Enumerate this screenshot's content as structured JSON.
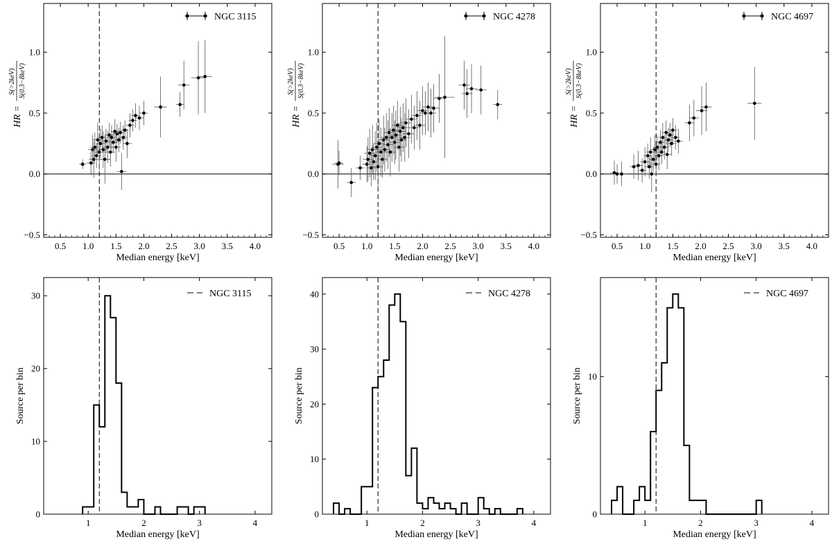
{
  "chart_data": [
    {
      "type": "scatter",
      "title": "",
      "legend": "NGC 3115",
      "legend_position": "top-right",
      "xlabel": "Median energy [keV]",
      "ylabel_main": "HR =",
      "ylabel_num": "S(>2keV)",
      "ylabel_den": "S(0.3−8keV)",
      "xlim": [
        0.2,
        4.3
      ],
      "ylim": [
        -0.52,
        1.4
      ],
      "xticks": [
        "0.5",
        "1.0",
        "1.5",
        "2.0",
        "2.5",
        "3.0",
        "3.5",
        "4.0"
      ],
      "yticks": [
        "−0.5",
        "0.0",
        "0.5",
        "1.0"
      ],
      "ytick_values": [
        -0.5,
        0.0,
        0.5,
        1.0
      ],
      "vline": 1.2,
      "hline": 0.0,
      "points": [
        [
          0.9,
          0.08,
          0.04
        ],
        [
          1.05,
          0.09,
          0.1
        ],
        [
          1.08,
          0.2,
          0.12
        ],
        [
          1.1,
          0.12,
          0.15
        ],
        [
          1.12,
          0.22,
          0.12
        ],
        [
          1.15,
          0.15,
          0.1
        ],
        [
          1.17,
          0.28,
          0.14
        ],
        [
          1.2,
          0.18,
          0.15
        ],
        [
          1.22,
          0.25,
          0.12
        ],
        [
          1.25,
          0.3,
          0.1
        ],
        [
          1.27,
          0.2,
          0.15
        ],
        [
          1.3,
          0.12,
          0.2
        ],
        [
          1.32,
          0.27,
          0.1
        ],
        [
          1.35,
          0.22,
          0.13
        ],
        [
          1.38,
          0.32,
          0.1
        ],
        [
          1.4,
          0.18,
          0.12
        ],
        [
          1.42,
          0.3,
          0.1
        ],
        [
          1.45,
          0.26,
          0.09
        ],
        [
          1.48,
          0.35,
          0.1
        ],
        [
          1.5,
          0.22,
          0.12
        ],
        [
          1.52,
          0.33,
          0.08
        ],
        [
          1.55,
          0.28,
          0.1
        ],
        [
          1.58,
          0.34,
          0.09
        ],
        [
          1.6,
          0.02,
          0.15
        ],
        [
          1.63,
          0.3,
          0.1
        ],
        [
          1.66,
          0.36,
          0.08
        ],
        [
          1.7,
          0.25,
          0.12
        ],
        [
          1.75,
          0.4,
          0.1
        ],
        [
          1.8,
          0.44,
          0.09
        ],
        [
          1.85,
          0.48,
          0.1
        ],
        [
          1.92,
          0.46,
          0.1
        ],
        [
          2.0,
          0.5,
          0.1
        ],
        [
          2.3,
          0.55,
          0.25
        ],
        [
          2.65,
          0.57,
          0.1
        ],
        [
          2.72,
          0.73,
          0.2
        ],
        [
          2.98,
          0.79,
          0.3
        ],
        [
          3.1,
          0.8,
          0.3
        ]
      ]
    },
    {
      "type": "scatter",
      "title": "",
      "legend": "NGC 4278",
      "legend_position": "top-right",
      "xlabel": "Median energy [keV]",
      "ylabel_main": "HR =",
      "ylabel_num": "S(>2keV)",
      "ylabel_den": "S(0.3−8keV)",
      "xlim": [
        0.2,
        4.3
      ],
      "ylim": [
        -0.52,
        1.4
      ],
      "xticks": [
        "0.5",
        "1.0",
        "1.5",
        "2.0",
        "2.5",
        "3.0",
        "3.5",
        "4.0"
      ],
      "yticks": [
        "−0.5",
        "0.0",
        "0.5",
        "1.0"
      ],
      "ytick_values": [
        -0.5,
        0.0,
        0.5,
        1.0
      ],
      "vline": 1.2,
      "hline": 0.0,
      "points": [
        [
          0.48,
          0.08,
          0.2
        ],
        [
          0.5,
          0.09,
          0.1
        ],
        [
          0.72,
          -0.07,
          0.12
        ],
        [
          0.88,
          0.05,
          0.1
        ],
        [
          1.0,
          0.08,
          0.15
        ],
        [
          1.02,
          0.12,
          0.18
        ],
        [
          1.05,
          0.17,
          0.2
        ],
        [
          1.08,
          0.05,
          0.15
        ],
        [
          1.1,
          0.2,
          0.2
        ],
        [
          1.12,
          0.1,
          0.15
        ],
        [
          1.15,
          0.15,
          0.2
        ],
        [
          1.18,
          0.22,
          0.2
        ],
        [
          1.2,
          0.06,
          0.18
        ],
        [
          1.22,
          0.25,
          0.2
        ],
        [
          1.25,
          0.18,
          0.2
        ],
        [
          1.28,
          0.12,
          0.15
        ],
        [
          1.3,
          0.28,
          0.2
        ],
        [
          1.32,
          0.2,
          0.18
        ],
        [
          1.35,
          0.3,
          0.2
        ],
        [
          1.38,
          0.24,
          0.2
        ],
        [
          1.4,
          0.34,
          0.2
        ],
        [
          1.42,
          0.18,
          0.2
        ],
        [
          1.45,
          0.3,
          0.2
        ],
        [
          1.48,
          0.36,
          0.2
        ],
        [
          1.5,
          0.26,
          0.18
        ],
        [
          1.52,
          0.32,
          0.2
        ],
        [
          1.55,
          0.4,
          0.2
        ],
        [
          1.58,
          0.22,
          0.2
        ],
        [
          1.6,
          0.35,
          0.2
        ],
        [
          1.62,
          0.28,
          0.18
        ],
        [
          1.65,
          0.38,
          0.2
        ],
        [
          1.68,
          0.3,
          0.2
        ],
        [
          1.7,
          0.42,
          0.2
        ],
        [
          1.75,
          0.33,
          0.2
        ],
        [
          1.8,
          0.45,
          0.2
        ],
        [
          1.85,
          0.38,
          0.18
        ],
        [
          1.9,
          0.48,
          0.2
        ],
        [
          1.95,
          0.4,
          0.2
        ],
        [
          2.0,
          0.52,
          0.2
        ],
        [
          2.05,
          0.5,
          0.18
        ],
        [
          2.1,
          0.55,
          0.2
        ],
        [
          2.15,
          0.5,
          0.2
        ],
        [
          2.2,
          0.54,
          0.2
        ],
        [
          2.3,
          0.62,
          0.2
        ],
        [
          2.4,
          0.63,
          0.5
        ],
        [
          2.75,
          0.73,
          0.2
        ],
        [
          2.8,
          0.66,
          0.2
        ],
        [
          2.88,
          0.7,
          0.2
        ],
        [
          3.05,
          0.69,
          0.2
        ],
        [
          3.35,
          0.57,
          0.12
        ]
      ]
    },
    {
      "type": "scatter",
      "title": "",
      "legend": "NGC 4697",
      "legend_position": "top-right",
      "xlabel": "Median energy [keV]",
      "ylabel_main": "HR =",
      "ylabel_num": "S(>2keV)",
      "ylabel_den": "S(0.3−8keV)",
      "xlim": [
        0.2,
        4.3
      ],
      "ylim": [
        -0.52,
        1.4
      ],
      "xticks": [
        "0.5",
        "1.0",
        "1.5",
        "2.0",
        "2.5",
        "3.0",
        "3.5",
        "4.0"
      ],
      "yticks": [
        "−0.5",
        "0.0",
        "0.5",
        "1.0"
      ],
      "ytick_values": [
        -0.5,
        0.0,
        0.5,
        1.0
      ],
      "vline": 1.2,
      "hline": 0.0,
      "points": [
        [
          0.45,
          0.01,
          0.1
        ],
        [
          0.5,
          0.0,
          0.08
        ],
        [
          0.58,
          0.0,
          0.1
        ],
        [
          0.8,
          0.06,
          0.1
        ],
        [
          0.88,
          0.07,
          0.12
        ],
        [
          0.95,
          0.03,
          0.1
        ],
        [
          1.0,
          0.1,
          0.12
        ],
        [
          1.05,
          0.15,
          0.1
        ],
        [
          1.08,
          0.06,
          0.1
        ],
        [
          1.1,
          0.18,
          0.12
        ],
        [
          1.12,
          0.0,
          0.15
        ],
        [
          1.15,
          0.12,
          0.1
        ],
        [
          1.18,
          0.2,
          0.12
        ],
        [
          1.2,
          0.08,
          0.1
        ],
        [
          1.22,
          0.22,
          0.1
        ],
        [
          1.25,
          0.15,
          0.12
        ],
        [
          1.28,
          0.26,
          0.1
        ],
        [
          1.3,
          0.18,
          0.1
        ],
        [
          1.32,
          0.3,
          0.12
        ],
        [
          1.35,
          0.22,
          0.1
        ],
        [
          1.38,
          0.34,
          0.1
        ],
        [
          1.4,
          0.16,
          0.12
        ],
        [
          1.42,
          0.28,
          0.1
        ],
        [
          1.45,
          0.32,
          0.1
        ],
        [
          1.48,
          0.25,
          0.1
        ],
        [
          1.5,
          0.36,
          0.1
        ],
        [
          1.55,
          0.3,
          0.1
        ],
        [
          1.6,
          0.27,
          0.1
        ],
        [
          1.8,
          0.42,
          0.15
        ],
        [
          1.88,
          0.46,
          0.15
        ],
        [
          2.02,
          0.52,
          0.2
        ],
        [
          2.1,
          0.55,
          0.2
        ],
        [
          2.97,
          0.58,
          0.3
        ]
      ]
    },
    {
      "type": "histogram",
      "title": "",
      "legend": "NGC 3115",
      "legend_position": "top-right",
      "xlabel": "Median energy [keV]",
      "ylabel": "Source per bin",
      "xlim": [
        0.2,
        4.3
      ],
      "ylim": [
        0,
        32.5
      ],
      "xticks": [
        "1",
        "2",
        "3",
        "4"
      ],
      "yticks": [
        "0",
        "10",
        "20",
        "30"
      ],
      "ytick_values": [
        0,
        10,
        20,
        30
      ],
      "vline": 1.2,
      "bin_width": 0.1,
      "bin_start": 0.9,
      "counts": [
        1,
        1,
        15,
        12,
        30,
        27,
        18,
        3,
        1,
        1,
        2,
        0,
        0,
        1,
        0,
        0,
        0,
        1,
        1,
        0,
        1,
        1
      ]
    },
    {
      "type": "histogram",
      "title": "",
      "legend": "NGC 4278",
      "legend_position": "top-right",
      "xlabel": "Median energy [keV]",
      "ylabel": "Source per bin",
      "xlim": [
        0.2,
        4.3
      ],
      "ylim": [
        0,
        43
      ],
      "xticks": [
        "1",
        "2",
        "3",
        "4"
      ],
      "yticks": [
        "0",
        "10",
        "20",
        "30",
        "40"
      ],
      "ytick_values": [
        0,
        10,
        20,
        30,
        40
      ],
      "vline": 1.2,
      "bin_width": 0.1,
      "bin_start": 0.4,
      "counts": [
        2,
        0,
        1,
        0,
        0,
        5,
        5,
        23,
        25,
        28,
        38,
        40,
        35,
        7,
        12,
        2,
        1,
        3,
        2,
        1,
        2,
        1,
        0,
        2,
        0,
        0,
        3,
        1,
        0,
        1,
        0,
        0,
        0,
        1
      ]
    },
    {
      "type": "histogram",
      "title": "",
      "legend": "NGC 4697",
      "legend_position": "top-right",
      "xlabel": "Median energy [keV]",
      "ylabel": "Source per bin",
      "xlim": [
        0.2,
        4.3
      ],
      "ylim": [
        0,
        17.2
      ],
      "xticks": [
        "1",
        "2",
        "3",
        "4"
      ],
      "yticks": [
        "0",
        "10"
      ],
      "ytick_values": [
        0,
        10
      ],
      "vline": 1.2,
      "bin_width": 0.1,
      "bin_start": 0.4,
      "counts": [
        1,
        2,
        0,
        0,
        1,
        2,
        1,
        6,
        9,
        11,
        15,
        16,
        15,
        5,
        1,
        1,
        1,
        0,
        0,
        0,
        0,
        0,
        0,
        0,
        0,
        0,
        1
      ]
    }
  ]
}
